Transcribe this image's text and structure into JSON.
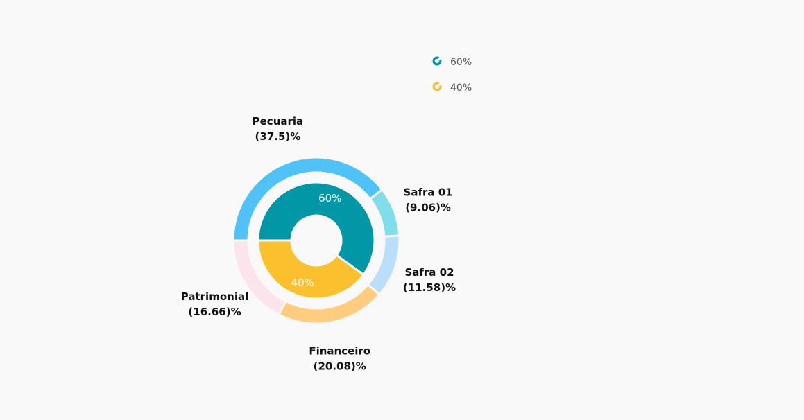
{
  "chart_data": {
    "type": "pie",
    "subtype": "nested-donut",
    "inner_series": {
      "slices": [
        {
          "label": "60%",
          "value": 60,
          "color": "#0097a7"
        },
        {
          "label": "40%",
          "value": 40,
          "color": "#fbc02d"
        }
      ]
    },
    "outer_series": {
      "slices": [
        {
          "name": "Pecuaria",
          "pct_label": "(37.5)%",
          "value": 37.5,
          "color": "#4fc3f7"
        },
        {
          "name": "Safra 01",
          "pct_label": "(9.06)%",
          "value": 9.06,
          "color": "#80deea"
        },
        {
          "name": "Safra 02",
          "pct_label": "(11.58)%",
          "value": 11.58,
          "color": "#bbdefb"
        },
        {
          "name": "Financeiro",
          "pct_label": "(20.08)%",
          "value": 20.08,
          "color": "#ffcc80"
        },
        {
          "name": "Patrimonial",
          "pct_label": "(16.66)%",
          "value": 16.66,
          "color": "#fce4ec"
        }
      ]
    },
    "legend": {
      "placement": "top-right",
      "items": [
        {
          "label": "60%",
          "color": "#0097a7"
        },
        {
          "label": "40%",
          "color": "#fbc02d"
        }
      ]
    }
  }
}
